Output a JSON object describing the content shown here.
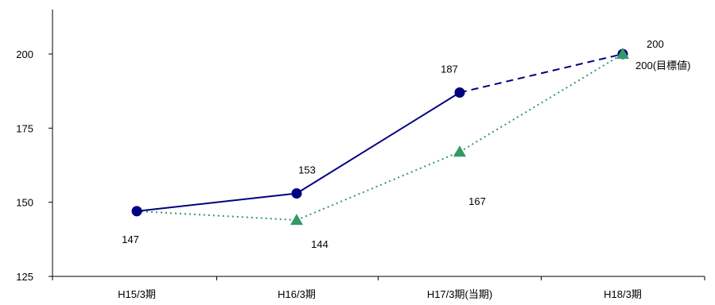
{
  "chart_data": {
    "type": "line",
    "categories": [
      "H15/3期",
      "H16/3期",
      "H17/3期(当期)",
      "H18/3期"
    ],
    "ylim": [
      125,
      215
    ],
    "yticks": [
      125,
      150,
      175,
      200
    ],
    "grid": false,
    "series": [
      {
        "values": [
          147,
          153,
          187,
          200
        ],
        "labels": [
          "147",
          "153",
          "187",
          "200"
        ],
        "color": "#000080",
        "marker": "circle",
        "line_style": "solid",
        "last_segment_style": "dashed"
      },
      {
        "values": [
          147,
          144,
          167,
          200
        ],
        "labels": [
          "",
          "144",
          "167",
          "200(目標値)"
        ],
        "color": "#339966",
        "marker": "triangle",
        "line_style": "dotted"
      }
    ]
  }
}
